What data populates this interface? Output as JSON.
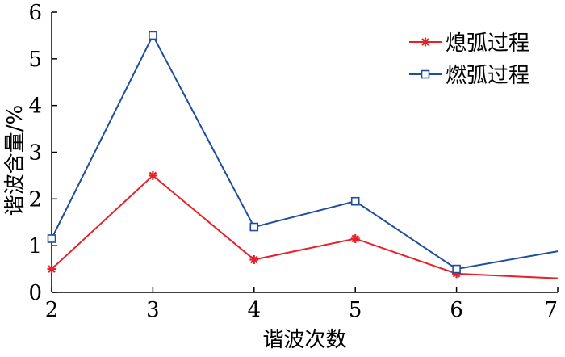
{
  "chart_data": {
    "type": "line",
    "title": "",
    "xlabel": "谐波次数",
    "ylabel": "谐波含量/%",
    "x": [
      2,
      3,
      4,
      5,
      6,
      7
    ],
    "xlim": [
      2,
      7
    ],
    "ylim": [
      0,
      6
    ],
    "xticks": [
      "2",
      "3",
      "4",
      "5",
      "6",
      "7"
    ],
    "yticks": [
      "0",
      "1",
      "2",
      "3",
      "4",
      "5",
      "6"
    ],
    "grid": false,
    "legend_position": "top-right",
    "series": [
      {
        "name": "熄弧过程",
        "values": [
          0.5,
          2.5,
          0.7,
          1.15,
          0.4,
          0.3
        ],
        "color": "#e8202a",
        "marker": "asterisk"
      },
      {
        "name": "燃弧过程",
        "values": [
          1.15,
          5.5,
          1.4,
          1.95,
          0.5,
          0.88
        ],
        "color": "#1f4e9c",
        "marker": "square"
      }
    ]
  }
}
